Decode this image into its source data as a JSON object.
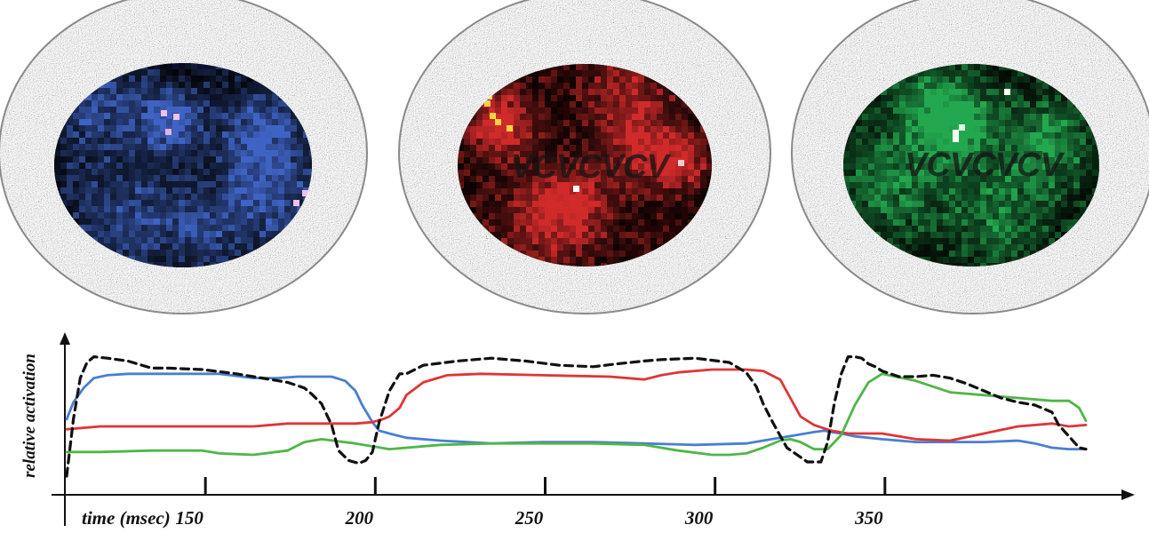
{
  "panels": [
    {
      "id": "blue",
      "color": "#3f63c4",
      "overlay_text": ""
    },
    {
      "id": "red",
      "color": "#d02a2a",
      "overlay_text": "VCVCVCV"
    },
    {
      "id": "green",
      "color": "#23a84f",
      "overlay_text": "VCVCVCV"
    }
  ],
  "chart_data": {
    "type": "line",
    "title": "",
    "xlabel": "time (msec)",
    "ylabel": "relative activation",
    "xlim": [
      100,
      400
    ],
    "ylim": [
      0,
      1
    ],
    "xticks": [
      150,
      200,
      250,
      300,
      350
    ],
    "grid": false,
    "legend": "none",
    "series": [
      {
        "color": "#4a7fd0",
        "dashed": false,
        "x": [
          100,
          102,
          105,
          108,
          112,
          118,
          125,
          135,
          145,
          155,
          162,
          168,
          172,
          178,
          182,
          185,
          187,
          190,
          192,
          195,
          200,
          210,
          225,
          240,
          255,
          270,
          285,
          300,
          305,
          310,
          315,
          320,
          323,
          325,
          328,
          332,
          340,
          350,
          360,
          370,
          380,
          385,
          390,
          395,
          400
        ],
        "y": [
          0.5,
          0.62,
          0.72,
          0.79,
          0.81,
          0.82,
          0.82,
          0.82,
          0.82,
          0.79,
          0.79,
          0.8,
          0.8,
          0.8,
          0.77,
          0.7,
          0.6,
          0.48,
          0.42,
          0.4,
          0.37,
          0.35,
          0.33,
          0.34,
          0.34,
          0.33,
          0.32,
          0.33,
          0.35,
          0.37,
          0.39,
          0.41,
          0.42,
          0.41,
          0.4,
          0.38,
          0.36,
          0.34,
          0.34,
          0.34,
          0.35,
          0.33,
          0.3,
          0.29,
          0.29
        ]
      },
      {
        "color": "#e03535",
        "dashed": false,
        "x": [
          100,
          110,
          125,
          140,
          155,
          165,
          175,
          185,
          190,
          193,
          195,
          198,
          200,
          205,
          212,
          222,
          240,
          260,
          270,
          275,
          280,
          290,
          300,
          305,
          310,
          313,
          316,
          320,
          325,
          330,
          340,
          350,
          360,
          370,
          380,
          390,
          395,
          400
        ],
        "y": [
          0.43,
          0.45,
          0.45,
          0.45,
          0.45,
          0.47,
          0.47,
          0.47,
          0.48,
          0.5,
          0.52,
          0.58,
          0.67,
          0.76,
          0.81,
          0.82,
          0.81,
          0.8,
          0.78,
          0.81,
          0.83,
          0.85,
          0.85,
          0.84,
          0.78,
          0.65,
          0.52,
          0.46,
          0.42,
          0.4,
          0.4,
          0.36,
          0.35,
          0.4,
          0.45,
          0.47,
          0.45,
          0.46
        ]
      },
      {
        "color": "#4fb648",
        "dashed": false,
        "x": [
          100,
          110,
          125,
          140,
          145,
          155,
          165,
          170,
          175,
          185,
          195,
          210,
          225,
          240,
          255,
          270,
          280,
          290,
          295,
          300,
          305,
          310,
          313,
          316,
          320,
          324,
          328,
          332,
          336,
          340,
          350,
          360,
          370,
          380,
          390,
          395,
          398,
          400
        ],
        "y": [
          0.27,
          0.27,
          0.28,
          0.28,
          0.26,
          0.25,
          0.28,
          0.34,
          0.36,
          0.33,
          0.29,
          0.32,
          0.33,
          0.33,
          0.33,
          0.32,
          0.28,
          0.25,
          0.25,
          0.26,
          0.3,
          0.35,
          0.36,
          0.34,
          0.29,
          0.29,
          0.39,
          0.6,
          0.76,
          0.82,
          0.77,
          0.69,
          0.67,
          0.65,
          0.63,
          0.63,
          0.58,
          0.49
        ]
      },
      {
        "color": "#111111",
        "dashed": true,
        "x": [
          100,
          102,
          104,
          106,
          108,
          112,
          118,
          125,
          130,
          140,
          150,
          160,
          165,
          170,
          172,
          175,
          178,
          180,
          183,
          186,
          188,
          190,
          192,
          195,
          198,
          200,
          205,
          215,
          225,
          235,
          245,
          255,
          262,
          270,
          275,
          285,
          295,
          300,
          303,
          305,
          308,
          312,
          318,
          322,
          324,
          326,
          328,
          330,
          332,
          334,
          336,
          338,
          340,
          345,
          350,
          355,
          360,
          365,
          370,
          375,
          380,
          385,
          390,
          392,
          395,
          398,
          400
        ],
        "y": [
          0.1,
          0.5,
          0.79,
          0.9,
          0.94,
          0.93,
          0.91,
          0.86,
          0.86,
          0.85,
          0.82,
          0.78,
          0.76,
          0.72,
          0.68,
          0.61,
          0.46,
          0.28,
          0.21,
          0.19,
          0.21,
          0.27,
          0.48,
          0.7,
          0.82,
          0.82,
          0.88,
          0.91,
          0.93,
          0.91,
          0.88,
          0.87,
          0.89,
          0.91,
          0.92,
          0.93,
          0.9,
          0.83,
          0.73,
          0.61,
          0.47,
          0.3,
          0.2,
          0.2,
          0.34,
          0.62,
          0.82,
          0.94,
          0.94,
          0.93,
          0.89,
          0.87,
          0.84,
          0.8,
          0.8,
          0.81,
          0.79,
          0.75,
          0.7,
          0.65,
          0.62,
          0.6,
          0.55,
          0.46,
          0.38,
          0.3,
          0.29
        ]
      }
    ]
  }
}
